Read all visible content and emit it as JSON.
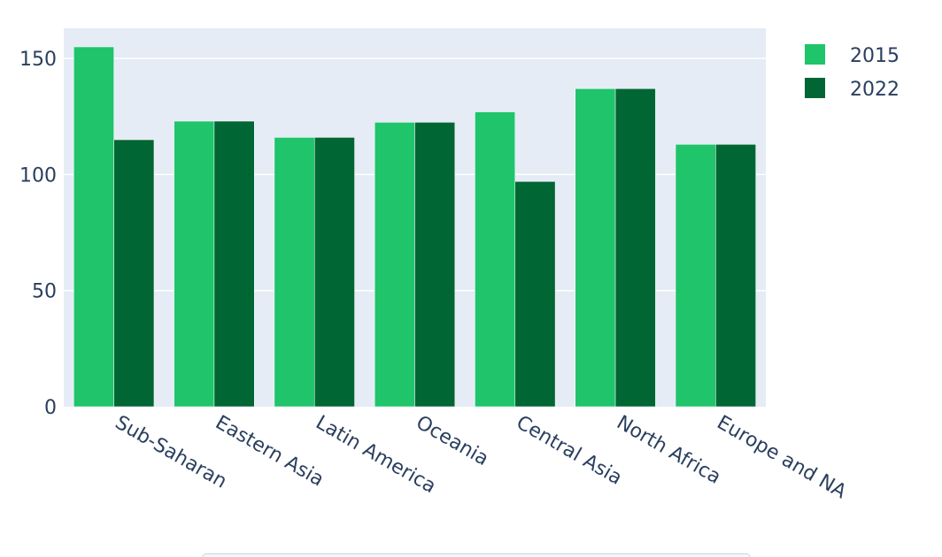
{
  "chart_data": {
    "type": "bar",
    "categories": [
      "Sub-Saharan",
      "Eastern Asia",
      "Latin America",
      "Oceania",
      "Central Asia",
      "North Africa",
      "Europe and NA"
    ],
    "series": [
      {
        "name": "2015",
        "values": [
          155,
          123,
          116,
          122.5,
          127,
          137,
          113
        ],
        "color": "#1fc46b"
      },
      {
        "name": "2022",
        "values": [
          115,
          123,
          116,
          122.5,
          97,
          137,
          113
        ],
        "color": "#006633"
      }
    ],
    "yticks": [
      "0",
      "50",
      "100",
      "150"
    ],
    "ytick_values": [
      0,
      50,
      100,
      150
    ],
    "ylim": [
      0,
      163
    ],
    "grid": true,
    "legend_position": "top-right",
    "plot_background": "#e5ecf6",
    "gridline_color": "#ffffff"
  }
}
